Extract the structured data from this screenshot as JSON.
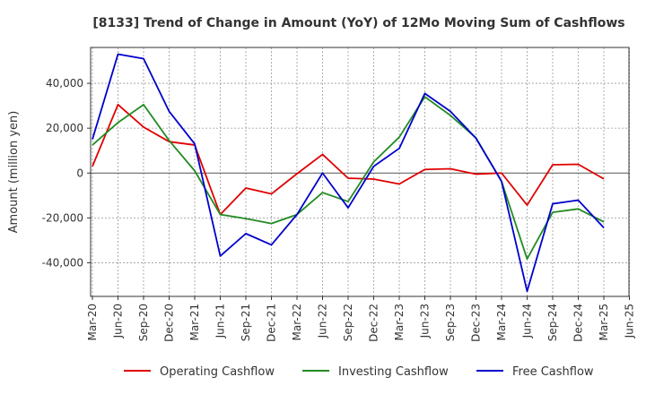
{
  "chart_data": {
    "type": "line",
    "title": "[8133]  Trend of Change in Amount (YoY) of 12Mo Moving Sum of Cashflows",
    "xlabel": "",
    "ylabel": "Amount (million yen)",
    "ylim": [
      -55000,
      56000
    ],
    "yticks": [
      40000,
      20000,
      0,
      -20000,
      -40000
    ],
    "ytick_labels": [
      "40,000",
      "20,000",
      "0",
      "-20,000",
      "-40,000"
    ],
    "xtick_labels": [
      "Mar-20",
      "Jun-20",
      "Sep-20",
      "Dec-20",
      "Mar-21",
      "Jun-21",
      "Sep-21",
      "Dec-21",
      "Mar-22",
      "Jun-22",
      "Sep-22",
      "Dec-22",
      "Mar-23",
      "Jun-23",
      "Sep-23",
      "Dec-23",
      "Mar-24",
      "Jun-24",
      "Sep-24",
      "Dec-24",
      "Mar-25",
      "Jun-25"
    ],
    "categories": [
      "Mar-20",
      "Jun-20",
      "Sep-20",
      "Dec-20",
      "Mar-21",
      "Jun-21",
      "Sep-21",
      "Dec-21",
      "Mar-22",
      "Jun-22",
      "Sep-22",
      "Dec-22",
      "Mar-23",
      "Jun-23",
      "Sep-23",
      "Dec-23",
      "Mar-24",
      "Jun-24",
      "Sep-24",
      "Dec-24",
      "Mar-25"
    ],
    "grid": true,
    "legend_position": "bottom",
    "series": [
      {
        "name": "Operating Cashflow",
        "color": "#e00000",
        "values": [
          3000,
          30500,
          20500,
          14000,
          12500,
          -18500,
          -6700,
          -9300,
          -300,
          8300,
          -2300,
          -2700,
          -4900,
          1600,
          1900,
          -500,
          0,
          -14300,
          3700,
          3900,
          -2600
        ]
      },
      {
        "name": "Investing Cashflow",
        "color": "#228b22",
        "values": [
          12500,
          22500,
          30500,
          14500,
          1000,
          -18500,
          -20300,
          -22500,
          -18500,
          -8700,
          -12700,
          5000,
          16000,
          34000,
          25700,
          15700,
          -3700,
          -38300,
          -17500,
          -16000,
          -21800
        ]
      },
      {
        "name": "Free Cashflow",
        "color": "#0000cc",
        "values": [
          15000,
          53000,
          51000,
          27500,
          13000,
          -37000,
          -27000,
          -32000,
          -18500,
          0,
          -15500,
          3000,
          11000,
          35500,
          27500,
          15500,
          -3700,
          -52700,
          -13700,
          -12100,
          -24400
        ]
      }
    ]
  }
}
